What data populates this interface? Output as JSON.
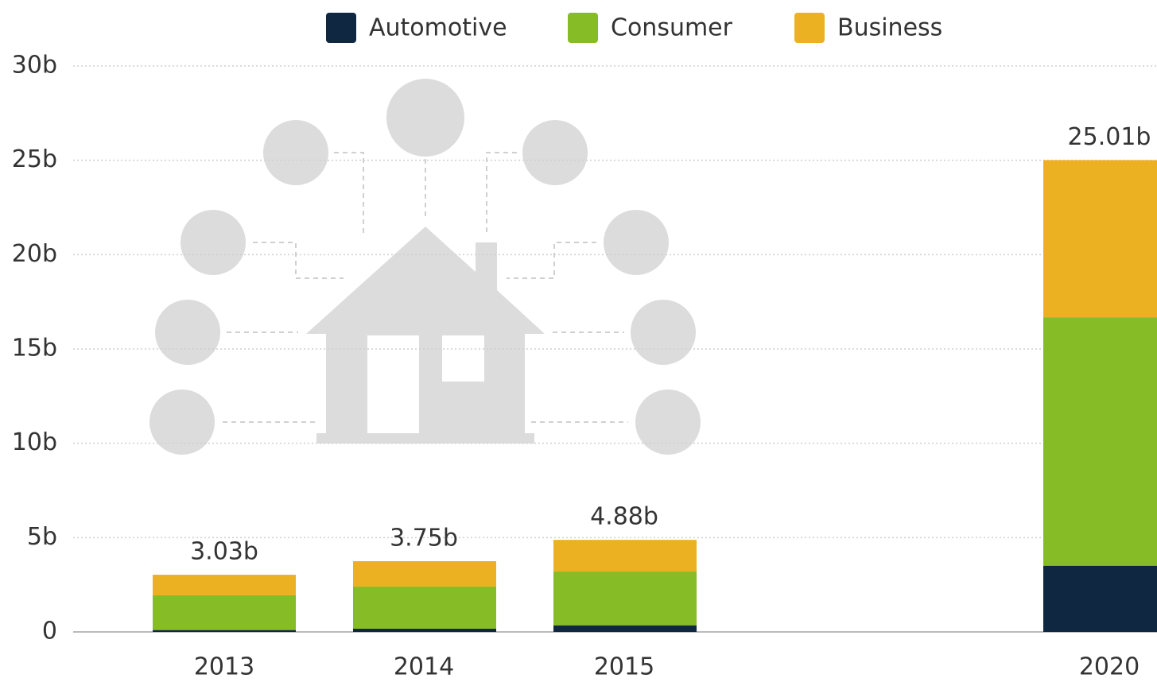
{
  "chart_data": {
    "type": "stacked_bar",
    "categories": [
      "2013",
      "2014",
      "2015",
      "2020"
    ],
    "series": [
      {
        "name": "Automotive",
        "color": "#0f2741",
        "values": [
          0.1,
          0.17,
          0.35,
          3.51
        ]
      },
      {
        "name": "Consumer",
        "color": "#86bc25",
        "values": [
          1.84,
          2.23,
          2.85,
          13.17
        ]
      },
      {
        "name": "Business",
        "color": "#ecb122",
        "values": [
          1.09,
          1.35,
          1.68,
          8.33
        ]
      }
    ],
    "totals": [
      3.03,
      3.75,
      4.88,
      25.01
    ],
    "total_labels": [
      "3.03b",
      "3.75b",
      "4.88b",
      "25.01b"
    ],
    "ylim": [
      0,
      30
    ],
    "yticks": [
      0,
      {
        "value": 5,
        "label": "5b"
      },
      {
        "value": 10,
        "label": "10b"
      },
      {
        "value": 15,
        "label": "15b"
      },
      {
        "value": 20,
        "label": "20b"
      },
      {
        "value": 25,
        "label": "25b"
      },
      {
        "value": 30,
        "label": "30b"
      }
    ],
    "grid": true,
    "legend": "top"
  }
}
